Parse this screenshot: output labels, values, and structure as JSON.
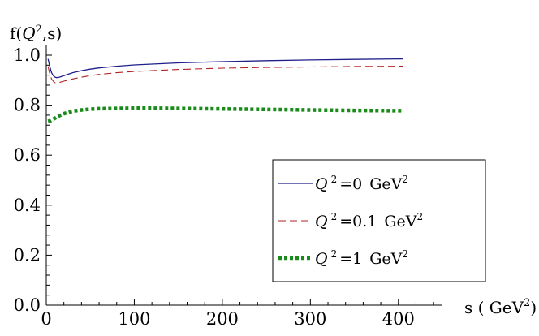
{
  "chart_data": {
    "type": "line",
    "title": "",
    "ylabel_parts": {
      "f": "f(",
      "q": "Q",
      "sup": "2",
      "rest": ",s)"
    },
    "xlabel_parts": {
      "main": "s ( GeV",
      "sup": "2",
      "close": ")"
    },
    "xlim": [
      0,
      450
    ],
    "ylim": [
      0,
      1.0
    ],
    "xticks": [
      {
        "v": 0,
        "label": "0"
      },
      {
        "v": 100,
        "label": "100"
      },
      {
        "v": 200,
        "label": "200"
      },
      {
        "v": 300,
        "label": "300"
      },
      {
        "v": 400,
        "label": "400"
      }
    ],
    "yticks": [
      {
        "v": 0.0,
        "label": "0.0"
      },
      {
        "v": 0.2,
        "label": "0.2"
      },
      {
        "v": 0.4,
        "label": "0.4"
      },
      {
        "v": 0.6,
        "label": "0.6"
      },
      {
        "v": 0.8,
        "label": "0.8"
      },
      {
        "v": 1.0,
        "label": "1.0"
      }
    ],
    "grid": false,
    "legend_position": "bottom-right",
    "series": [
      {
        "label_parts": {
          "q": "Q",
          "sup": "2",
          "eq": "=0",
          "unit": "GeV",
          "usup": "2"
        },
        "color": "#1f1f8c",
        "style": "solid",
        "x": [
          2,
          4,
          6,
          8,
          10,
          12,
          15,
          20,
          30,
          40,
          50,
          60,
          80,
          100,
          150,
          200,
          250,
          300,
          350,
          400,
          405
        ],
        "y": [
          0.985,
          0.955,
          0.93,
          0.918,
          0.912,
          0.91,
          0.912,
          0.918,
          0.93,
          0.938,
          0.944,
          0.949,
          0.956,
          0.961,
          0.969,
          0.974,
          0.978,
          0.981,
          0.983,
          0.985,
          0.985
        ]
      },
      {
        "label_parts": {
          "q": "Q",
          "sup": "2",
          "eq": "=0.1",
          "unit": "GeV",
          "usup": "2"
        },
        "color": "#b22222",
        "style": "dashed",
        "x": [
          2,
          4,
          6,
          8,
          10,
          12,
          15,
          20,
          30,
          40,
          50,
          60,
          80,
          100,
          150,
          200,
          250,
          300,
          350,
          400,
          405
        ],
        "y": [
          0.955,
          0.925,
          0.905,
          0.895,
          0.89,
          0.889,
          0.891,
          0.896,
          0.905,
          0.912,
          0.918,
          0.923,
          0.93,
          0.935,
          0.943,
          0.948,
          0.951,
          0.953,
          0.955,
          0.956,
          0.956
        ]
      },
      {
        "label_parts": {
          "q": "Q",
          "sup": "2",
          "eq": "=1",
          "unit": "GeV",
          "usup": "2"
        },
        "color": "#1a8a1a",
        "style": "dotted",
        "x": [
          2,
          5,
          10,
          15,
          20,
          30,
          40,
          50,
          60,
          80,
          100,
          120,
          150,
          200,
          250,
          300,
          350,
          400,
          405
        ],
        "y": [
          0.735,
          0.738,
          0.748,
          0.758,
          0.766,
          0.776,
          0.781,
          0.784,
          0.786,
          0.787,
          0.788,
          0.788,
          0.787,
          0.785,
          0.783,
          0.781,
          0.779,
          0.778,
          0.778
        ]
      }
    ]
  }
}
